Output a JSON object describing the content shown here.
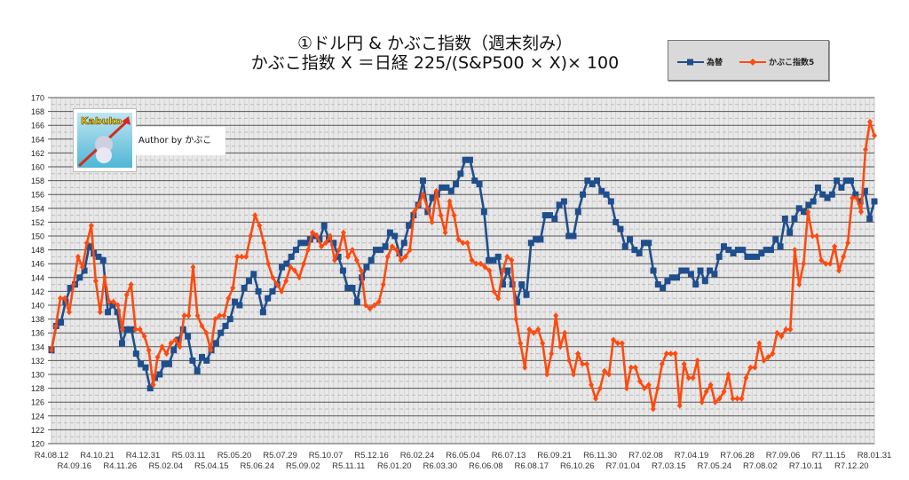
{
  "chart_data": {
    "type": "line",
    "title": [
      "①ドル円 & かぶこ指数（週末刻み）",
      "かぶこ指数 X ＝日経 225/(S&P500 × X)× 100"
    ],
    "xlabel": "",
    "ylabel": "",
    "ylim": [
      120,
      170
    ],
    "ytick_step": 2,
    "grid": true,
    "legend_position": "top-right",
    "x_tick_labels": [
      "R4.08.12",
      "R4.09.16",
      "R4.10.21",
      "R4.11.26",
      "R4.12.31",
      "R5.02.04",
      "R5.03.11",
      "R5.04.15",
      "R5.05.20",
      "R5.06.24",
      "R5.07.29",
      "R5.09.02",
      "R5.10.07",
      "R5.11.11",
      "R5.12.16",
      "R6.01.20",
      "R6.02.24",
      "R6.03.30",
      "R6.05.04",
      "R6.06.08",
      "R6.07.13",
      "R6.08.17",
      "R6.09.21",
      "R6.10.26",
      "R6.11.30",
      "R7.01.04",
      "R7.02.08",
      "R7.03.15",
      "R7.04.19",
      "R7.05.24",
      "R7.06.28",
      "R7.08.02",
      "R7.09.06",
      "R7.10.11",
      "R7.11.15",
      "R7.12.20",
      "R8.01.31"
    ],
    "series": [
      {
        "name": "為替",
        "color": "#1f4e8c",
        "marker": "square",
        "values": [
          133.5,
          137,
          137.5,
          140.5,
          142.5,
          143,
          144,
          145,
          148.5,
          147.5,
          147,
          146.5,
          139,
          140,
          139,
          134.5,
          136.5,
          136.5,
          133,
          131.5,
          131,
          128,
          129.5,
          130,
          131.5,
          131.5,
          133.5,
          135,
          136.5,
          135.5,
          132,
          130.5,
          132.5,
          132,
          133.5,
          134.5,
          136,
          137,
          138,
          140.5,
          140,
          142.5,
          143.5,
          144.5,
          142,
          139,
          141,
          142,
          143,
          145.5,
          146,
          147,
          148,
          149,
          149,
          149.5,
          150,
          149.5,
          151.5,
          149.5,
          149,
          147,
          145,
          142.5,
          142.5,
          140.5,
          144,
          145.5,
          146.5,
          148,
          148,
          148.5,
          150.5,
          150,
          147.5,
          149,
          151.5,
          153,
          154.5,
          158,
          153.5,
          155.5,
          156,
          157,
          157,
          156.5,
          157.5,
          159,
          161,
          161,
          158,
          157.5,
          153.5,
          146.5,
          146.5,
          147,
          143,
          145,
          143,
          140.5,
          143,
          141.5,
          149,
          149.5,
          149.5,
          153,
          153,
          152.5,
          154.5,
          155,
          150,
          150,
          153.5,
          156,
          158,
          157.5,
          158,
          156.5,
          156,
          155,
          152,
          151,
          148.5,
          149.5,
          148,
          147.5,
          149,
          149,
          145,
          143,
          142.5,
          143.5,
          144,
          144,
          145,
          145,
          144.5,
          143,
          145,
          143.5,
          145,
          144.5,
          147,
          148.5,
          148,
          147.5,
          148,
          148,
          147,
          147,
          147,
          147.5,
          148,
          148,
          149.5,
          148.5,
          152.5,
          150.5,
          152.5,
          154,
          153.5,
          154.5,
          155,
          157,
          156,
          155.5,
          156,
          158,
          157,
          158,
          158,
          156,
          155,
          156.5,
          152.5,
          155
        ]
      },
      {
        "name": "かぶこ指数5",
        "color": "#ff4a0f",
        "marker": "diamond",
        "values": [
          133.5,
          137,
          141,
          141,
          139,
          143,
          147,
          145.5,
          149,
          151.5,
          143.5,
          139,
          144,
          140.5,
          140.5,
          140,
          136.5,
          141.5,
          143,
          136.5,
          136.5,
          135.5,
          133.5,
          128.5,
          132.5,
          134,
          133,
          134.5,
          135,
          134,
          138.5,
          138.5,
          145.5,
          138.5,
          137,
          136,
          133.5,
          138,
          138.5,
          138.5,
          141,
          142.5,
          147,
          147,
          147,
          150,
          153,
          151.5,
          149,
          146,
          144,
          143,
          142,
          143.5,
          145.5,
          145,
          144,
          146,
          148,
          150.5,
          150,
          148.5,
          149,
          150,
          146.5,
          148,
          150.5,
          147,
          148,
          146.5,
          145,
          140,
          139.5,
          140,
          140.5,
          143,
          147,
          148.5,
          148,
          146.5,
          147,
          148,
          153.5,
          154.5,
          156,
          154,
          152,
          156.5,
          153,
          150.5,
          155,
          153,
          149.5,
          149,
          149,
          146.5,
          146,
          146,
          145.5,
          145,
          142,
          141,
          145,
          147,
          146.5,
          138,
          134.5,
          131,
          136.5,
          136,
          136.5,
          134.5,
          130,
          133,
          138.5,
          134,
          136,
          132,
          130,
          133,
          131.5,
          131.5,
          128.5,
          126.5,
          128,
          130.5,
          130,
          135,
          134.5,
          134.5,
          128,
          131,
          131,
          129,
          128,
          128.5,
          125,
          128,
          131.5,
          133,
          133,
          133,
          125.5,
          131.5,
          129.5,
          129.5,
          132,
          126,
          127.5,
          128.5,
          126,
          126.5,
          127.5,
          130,
          126.5,
          126.5,
          126.5,
          129.5,
          131,
          131,
          134.5,
          132,
          132.5,
          133,
          136,
          135.5,
          136.5,
          136.5,
          148,
          143,
          146,
          153.5,
          150,
          150,
          146.5,
          146,
          146,
          148.5,
          145,
          147,
          149,
          155.5,
          155.5,
          153.5,
          162.5,
          166.5,
          164.5
        ]
      }
    ]
  },
  "logo": {
    "text": "Kabuko"
  },
  "author": "Author by かぶこ"
}
